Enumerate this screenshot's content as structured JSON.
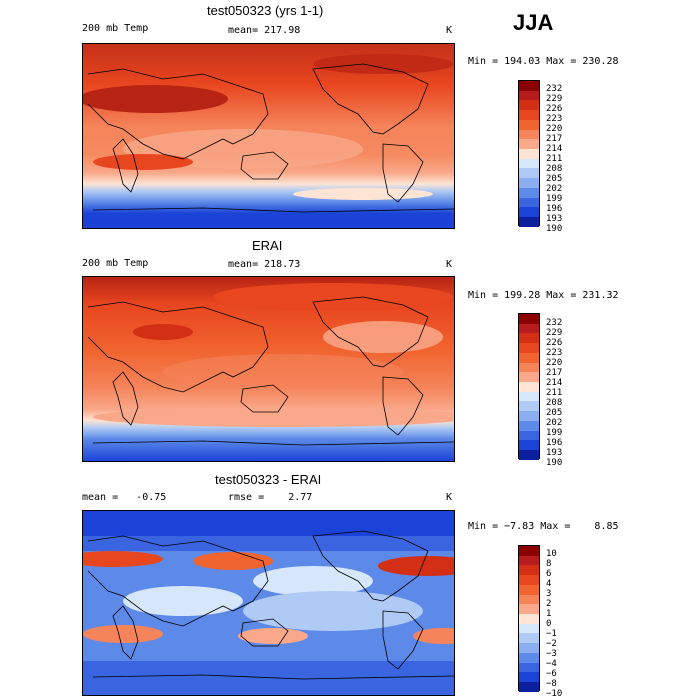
{
  "season": "JJA",
  "panels": [
    {
      "title": "test050323 (yrs 1-1)",
      "left_label": "200 mb Temp",
      "center_label": "mean= 217.98",
      "units": "K",
      "minmax": "Min = 194.03 Max = 230.28",
      "levels": [
        "232",
        "229",
        "226",
        "223",
        "220",
        "217",
        "214",
        "211",
        "208",
        "205",
        "202",
        "199",
        "196",
        "193",
        "190"
      ]
    },
    {
      "title": "ERAI",
      "left_label": "200 mb Temp",
      "center_label": "mean= 218.73",
      "units": "K",
      "minmax": "Min = 199.28 Max = 231.32",
      "levels": [
        "232",
        "229",
        "226",
        "223",
        "220",
        "217",
        "214",
        "211",
        "208",
        "205",
        "202",
        "199",
        "196",
        "193",
        "190"
      ]
    },
    {
      "title": "test050323 - ERAI",
      "left_label": "mean =   -0.75",
      "center_label": "rmse =    2.77",
      "units": "K",
      "minmax": "Min = −7.83 Max =    8.85",
      "levels": [
        "10",
        "8",
        "6",
        "4",
        "3",
        "2",
        "1",
        "0",
        "−1",
        "−2",
        "−3",
        "−4",
        "−6",
        "−8",
        "−10"
      ]
    }
  ],
  "colors": {
    "scale": [
      "#8b0000",
      "#b71c1c",
      "#d32f14",
      "#e8461f",
      "#f0642f",
      "#f5845a",
      "#f9a88a",
      "#fde4d4",
      "#d6e6fb",
      "#afcaf4",
      "#8aaef0",
      "#5d8ae8",
      "#3a64e0",
      "#1c43d8",
      "#0c1f9c"
    ]
  }
}
